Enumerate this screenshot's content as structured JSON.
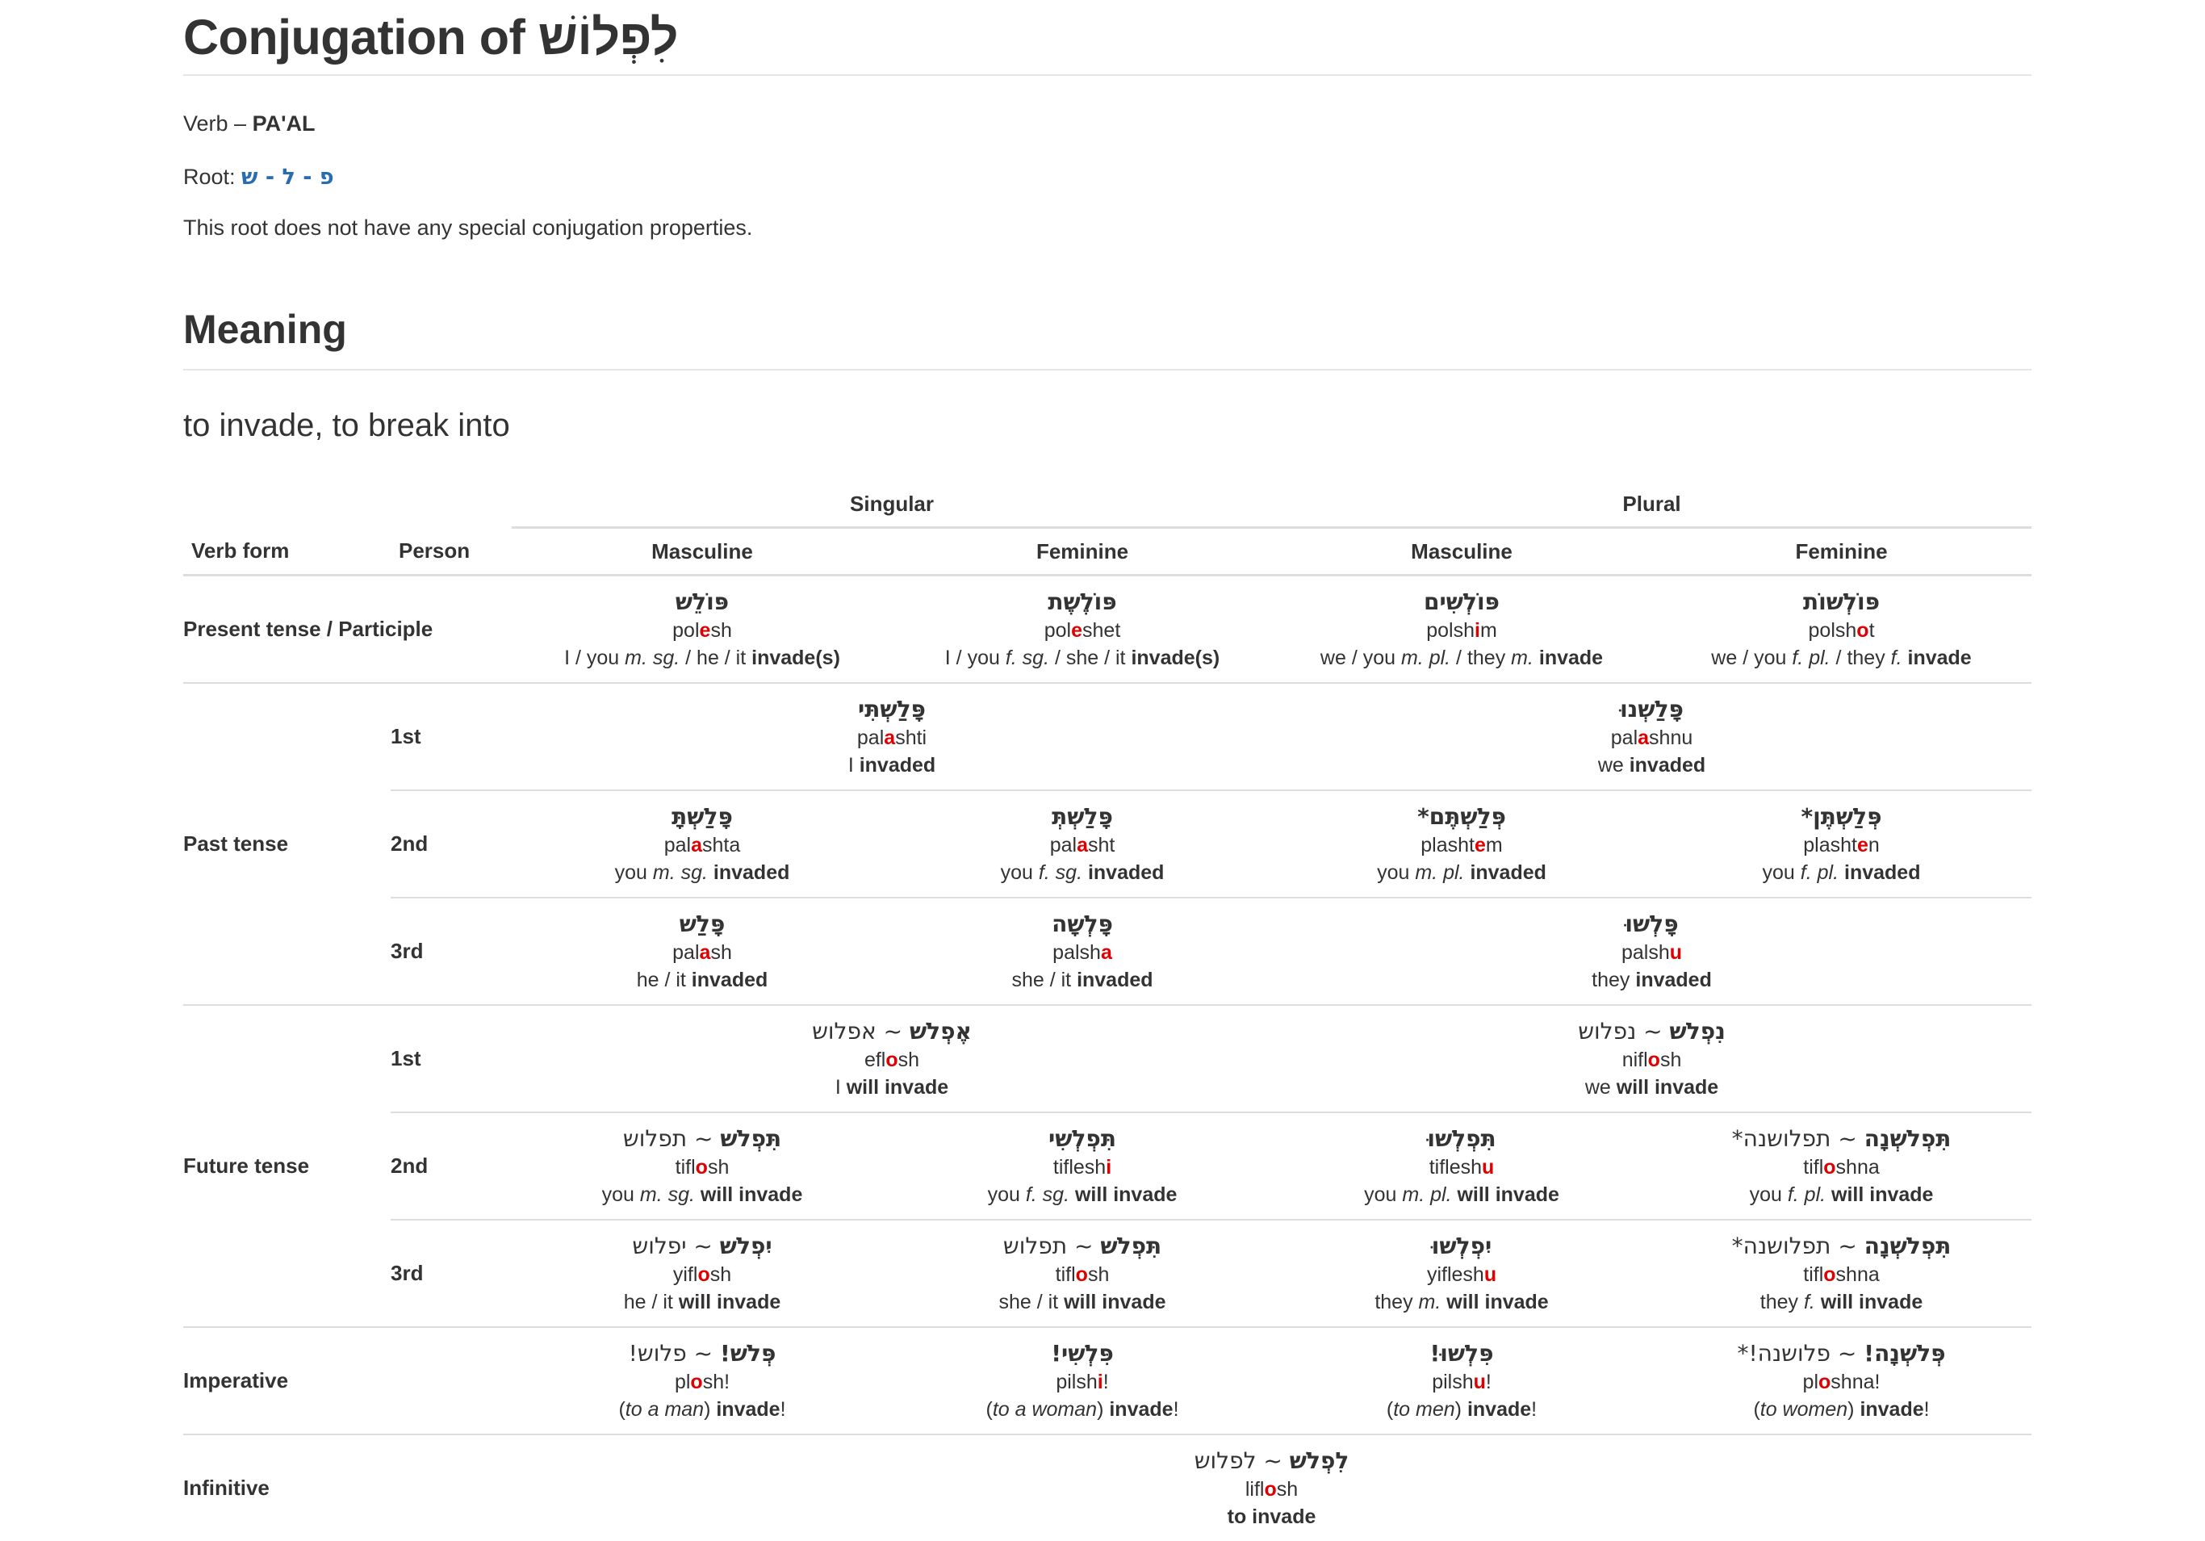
{
  "page": {
    "title": "Conjugation of לִפְלוֹשׁ",
    "verb_prefix": "Verb – ",
    "binyan": "PA'AL",
    "root_label": "Root: ",
    "root": "פ - ל - ש",
    "note": "This root does not have any special conjugation properties.",
    "meaning_heading": "Meaning",
    "meaning": "to invade, to break into"
  },
  "table": {
    "group_singular": "Singular",
    "group_plural": "Plural",
    "col_verb_form": "Verb form",
    "col_person": "Person",
    "col_masc": "Masculine",
    "col_fem": "Feminine",
    "col_masc_pl": "Masculine",
    "col_fem_pl": "Feminine",
    "verb_forms": {
      "present": "Present tense / Participle",
      "past": "Past tense",
      "future": "Future tense",
      "imperative": "Imperative",
      "infinitive": "Infinitive"
    },
    "persons": {
      "first": "1st",
      "second": "2nd",
      "third": "3rd",
      "first_f": "1st",
      "second_f": "2nd",
      "third_f": "3rd"
    },
    "cells": {
      "pres_ms": {
        "heb": "פּוֹלֵשׁ",
        "tr_pre": "pol",
        "tr_hl": "e",
        "tr_post": "sh"
      },
      "pres_fs": {
        "heb": "פּוֹלֶשֶׁת",
        "tr_pre": "pol",
        "tr_hl": "e",
        "tr_post": "shet"
      },
      "pres_mp": {
        "heb": "פּוֹלְשִׁים",
        "tr_pre": "polsh",
        "tr_hl": "i",
        "tr_post": "m"
      },
      "pres_fp": {
        "heb": "פּוֹלְשׁוֹת",
        "tr_pre": "polsh",
        "tr_hl": "o",
        "tr_post": "t"
      },
      "past_1s": {
        "heb": "פָּלַשְׁתִּי",
        "tr_pre": "pal",
        "tr_hl": "a",
        "tr_post": "shti"
      },
      "past_1p": {
        "heb": "פָּלַשְׁנוּ",
        "tr_pre": "pal",
        "tr_hl": "a",
        "tr_post": "shnu"
      },
      "past_2ms": {
        "heb": "פָּלַשְׁתָּ",
        "tr_pre": "pal",
        "tr_hl": "a",
        "tr_post": "shta"
      },
      "past_2fs": {
        "heb": "פָּלַשְׁתְּ",
        "tr_pre": "pal",
        "tr_hl": "a",
        "tr_post": "sht"
      },
      "past_2mp": {
        "heb": "פְּלַשְׁתֶּם*",
        "tr_pre": "plasht",
        "tr_hl": "e",
        "tr_post": "m"
      },
      "past_2fp": {
        "heb": "פְּלַשְׁתֶּן*",
        "tr_pre": "plasht",
        "tr_hl": "e",
        "tr_post": "n"
      },
      "past_3ms": {
        "heb": "פָּלַשׁ",
        "tr_pre": "pal",
        "tr_hl": "a",
        "tr_post": "sh"
      },
      "past_3fs": {
        "heb": "פָּלְשָׁה",
        "tr_pre": "palsh",
        "tr_hl": "a",
        "tr_post": ""
      },
      "past_3p": {
        "heb": "פָּלְשׁוּ",
        "tr_pre": "palsh",
        "tr_hl": "u",
        "tr_post": ""
      },
      "fut_1s": {
        "heb": "אֶפְלֹשׁ",
        "alt": " ~ אפלוש",
        "tr_pre": "efl",
        "tr_hl": "o",
        "tr_post": "sh"
      },
      "fut_1p": {
        "heb": "נִפְלֹשׁ",
        "alt": " ~ נפלוש",
        "tr_pre": "nifl",
        "tr_hl": "o",
        "tr_post": "sh"
      },
      "fut_2ms": {
        "heb": "תִּפְלֹשׁ",
        "alt": " ~ תפלוש",
        "tr_pre": "tifl",
        "tr_hl": "o",
        "tr_post": "sh"
      },
      "fut_2fs": {
        "heb": "תִּפְלְשִׁי",
        "tr_pre": "tiflesh",
        "tr_hl": "i",
        "tr_post": ""
      },
      "fut_2mp": {
        "heb": "תִּפְלְשׁוּ",
        "tr_pre": "tiflesh",
        "tr_hl": "u",
        "tr_post": ""
      },
      "fut_2fp": {
        "heb": "תִּפְלֹשְׁנָה",
        "alt": " ~ תפלושנה*",
        "tr_pre": "tifl",
        "tr_hl": "o",
        "tr_post": "shna"
      },
      "fut_3ms": {
        "heb": "יִפְלֹשׁ",
        "alt": " ~ יפלוש",
        "tr_pre": "yifl",
        "tr_hl": "o",
        "tr_post": "sh"
      },
      "fut_3fs": {
        "heb": "תִּפְלֹשׁ",
        "alt": " ~ תפלוש",
        "tr_pre": "tifl",
        "tr_hl": "o",
        "tr_post": "sh"
      },
      "fut_3mp": {
        "heb": "יִפְלְשׁוּ",
        "tr_pre": "yiflesh",
        "tr_hl": "u",
        "tr_post": ""
      },
      "fut_3fp": {
        "heb": "תִּפְלֹשְׁנָה",
        "alt": " ~ תפלושנה*",
        "tr_pre": "tifl",
        "tr_hl": "o",
        "tr_post": "shna"
      },
      "imp_ms": {
        "heb": "פְּלֹשׁ!",
        "alt": " ~ פלוש!",
        "tr_pre": "pl",
        "tr_hl": "o",
        "tr_post": "sh!"
      },
      "imp_fs": {
        "heb": "פִּלְשִׁי!",
        "tr_pre": "pilsh",
        "tr_hl": "i",
        "tr_post": "!"
      },
      "imp_mp": {
        "heb": "פִּלְשׁוּ!",
        "tr_pre": "pilsh",
        "tr_hl": "u",
        "tr_post": "!"
      },
      "imp_fp": {
        "heb": "פְּלֹשְׁנָה!",
        "alt": " ~ פלושנה!*",
        "tr_pre": "pl",
        "tr_hl": "o",
        "tr_post": "shna!"
      },
      "inf": {
        "heb": "לִפְלֹשׁ",
        "alt": " ~ לפלוש",
        "tr_pre": "lifl",
        "tr_hl": "o",
        "tr_post": "sh"
      }
    },
    "en": {
      "pres_ms": {
        "a": "I / you ",
        "i": "m. sg.",
        "b": " / he / it ",
        "bold": "invade(s)",
        "c": ""
      },
      "pres_fs": {
        "a": "I / you ",
        "i": "f. sg.",
        "b": " / she / it ",
        "bold": "invade(s)",
        "c": ""
      },
      "pres_mp": {
        "a": "we / you ",
        "i": "m. pl.",
        "b": " / they ",
        "i2": "m.",
        "bold": "invade",
        "c": ""
      },
      "pres_fp": {
        "a": "we / you ",
        "i": "f. pl.",
        "b": " / they ",
        "i2": "f.",
        "bold": "invade",
        "c": ""
      },
      "past_1s": {
        "a": "I ",
        "bold": "invaded"
      },
      "past_1p": {
        "a": "we ",
        "bold": "invaded"
      },
      "past_2ms": {
        "a": "you ",
        "i": "m. sg.",
        "bold": "invaded"
      },
      "past_2fs": {
        "a": "you ",
        "i": "f. sg.",
        "bold": "invaded"
      },
      "past_2mp": {
        "a": "you ",
        "i": "m. pl.",
        "bold": "invaded"
      },
      "past_2fp": {
        "a": "you ",
        "i": "f. pl.",
        "bold": "invaded"
      },
      "past_3ms": {
        "a": "he / it ",
        "bold": "invaded"
      },
      "past_3fs": {
        "a": "she / it ",
        "bold": "invaded"
      },
      "past_3p": {
        "a": "they ",
        "bold": "invaded"
      },
      "fut_1s": {
        "a": "I ",
        "bold": "will invade"
      },
      "fut_1p": {
        "a": "we ",
        "bold": "will invade"
      },
      "fut_2ms": {
        "a": "you ",
        "i": "m. sg.",
        "bold": "will invade"
      },
      "fut_2fs": {
        "a": "you ",
        "i": "f. sg.",
        "bold": "will invade"
      },
      "fut_2mp": {
        "a": "you ",
        "i": "m. pl.",
        "bold": "will invade"
      },
      "fut_2fp": {
        "a": "you ",
        "i": "f. pl.",
        "bold": "will invade"
      },
      "fut_3ms": {
        "a": "he / it ",
        "bold": "will invade"
      },
      "fut_3fs": {
        "a": "she / it ",
        "bold": "will invade"
      },
      "fut_3mp": {
        "a": "they ",
        "i": "m.",
        "bold": "will invade"
      },
      "fut_3fp": {
        "a": "they ",
        "i": "f.",
        "bold": "will invade"
      },
      "imp_ms": {
        "p1": "(",
        "i": "to a man",
        "p2": ") ",
        "bold": "invade",
        "c": "!"
      },
      "imp_fs": {
        "p1": "(",
        "i": "to a woman",
        "p2": ") ",
        "bold": "invade",
        "c": "!"
      },
      "imp_mp": {
        "p1": "(",
        "i": "to men",
        "p2": ") ",
        "bold": "invade",
        "c": "!"
      },
      "imp_fp": {
        "p1": "(",
        "i": "to women",
        "p2": ") ",
        "bold": "invade",
        "c": "!"
      },
      "inf": {
        "bold": "to invade"
      }
    }
  }
}
